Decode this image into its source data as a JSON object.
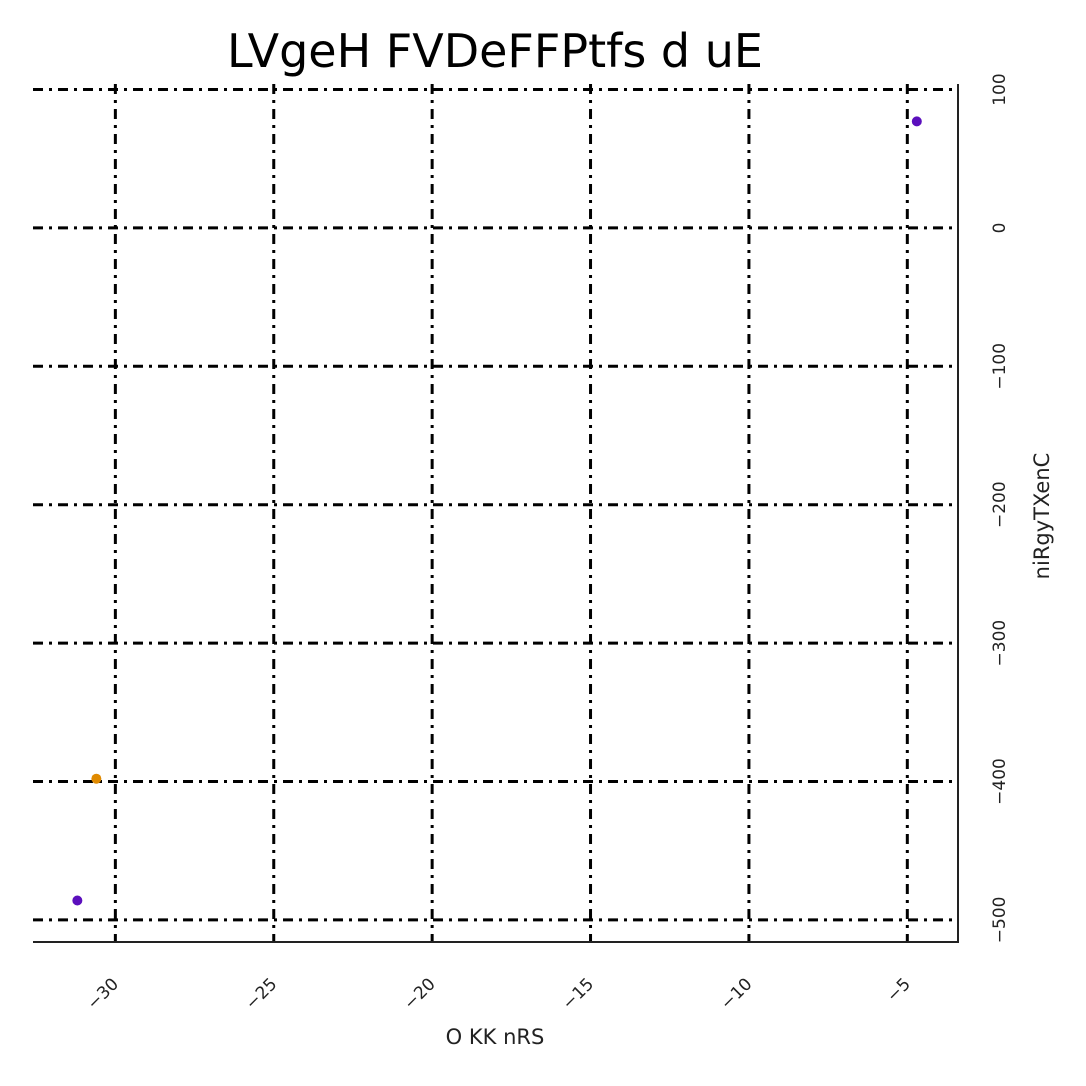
{
  "chart_data": {
    "type": "scatter",
    "title": "LVgeH FVDeFFPtfs d uE",
    "xlabel": "O  KK nRS",
    "ylabel": "niRgyTXenC",
    "xlim": [
      -32.6,
      -3.4
    ],
    "ylim": [
      -516,
      104
    ],
    "x_ticks": [
      -30,
      -25,
      -20,
      -15,
      -10,
      -5
    ],
    "x_tick_labels": [
      "−30",
      "−25",
      "−20",
      "−15",
      "−10",
      "−5"
    ],
    "y_ticks": [
      100,
      0,
      -100,
      -200,
      -300,
      -400,
      -500
    ],
    "y_tick_labels": [
      "100",
      "0",
      "−100",
      "−200",
      "−300",
      "−400",
      "−500"
    ],
    "grid": true,
    "y_axis_position": "right",
    "points": [
      {
        "x": -4.7,
        "y": 77,
        "color": "#5b0fbd"
      },
      {
        "x": -30.6,
        "y": -398,
        "color": "#e08a00"
      },
      {
        "x": -31.2,
        "y": -486,
        "color": "#5b0fbd"
      }
    ]
  }
}
